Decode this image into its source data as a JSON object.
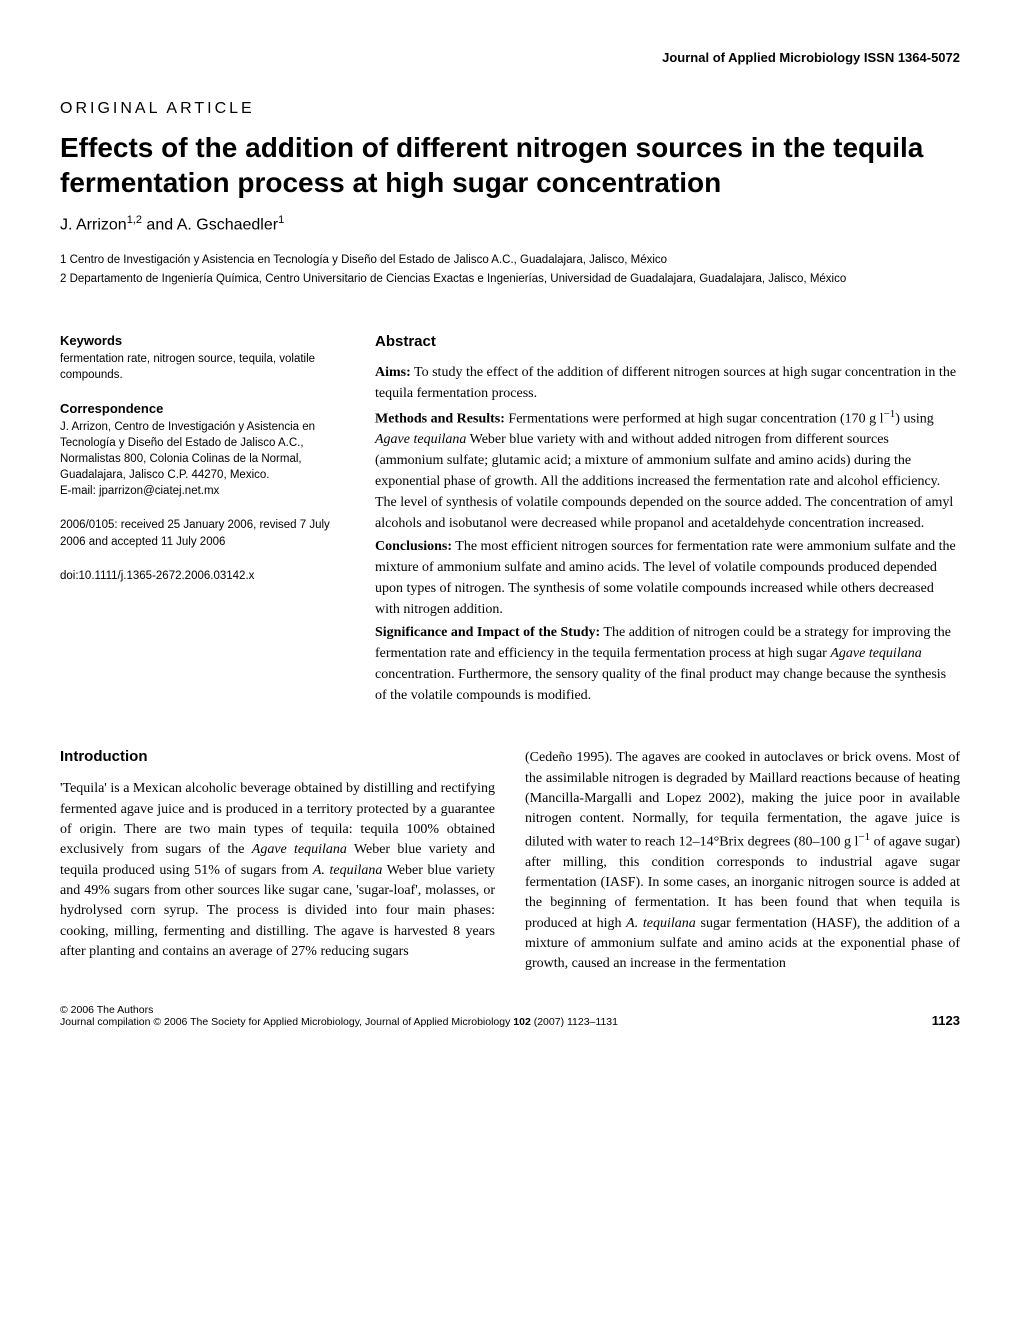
{
  "journal_header": "Journal of Applied Microbiology ISSN 1364-5072",
  "article_type": "ORIGINAL ARTICLE",
  "title": "Effects of the addition of different nitrogen sources in the tequila fermentation process at high sugar concentration",
  "authors": "J. Arrizon",
  "author_sup1": "1,2",
  "authors_and": " and A. Gschaedler",
  "author_sup2": "1",
  "affiliations": {
    "a1": "1 Centro de Investigación y Asistencia en Tecnología y Diseño del Estado de Jalisco A.C., Guadalajara, Jalisco, México",
    "a2": "2 Departamento de Ingeniería Química, Centro Universitario de Ciencias Exactas e Ingenierías, Universidad de Guadalajara, Guadalajara, Jalisco, México"
  },
  "keywords_heading": "Keywords",
  "keywords_text": "fermentation rate, nitrogen source, tequila, volatile compounds.",
  "correspondence_heading": "Correspondence",
  "correspondence_text": "J. Arrizon, Centro de Investigación y Asistencia en Tecnología y Diseño del Estado de Jalisco A.C., Normalistas 800, Colonia Colinas de la Normal, Guadalajara, Jalisco C.P. 44270, Mexico.",
  "correspondence_email": "E-mail: jparrizon@ciatej.net.mx",
  "received_text": "2006/0105: received 25 January 2006, revised 7 July 2006 and accepted 11 July 2006",
  "doi": "doi:10.1111/j.1365-2672.2006.03142.x",
  "abstract_heading": "Abstract",
  "abstract": {
    "aims_label": "Aims:",
    "aims": " To study the effect of the addition of different nitrogen sources at high sugar concentration in the tequila fermentation process.",
    "methods_label": "Methods and Results:",
    "methods1": " Fermentations were performed at high sugar concentration (170 g l",
    "methods_sup": "−1",
    "methods2": ") using ",
    "methods_italic": "Agave tequilana",
    "methods3": " Weber blue variety with and without added nitrogen from different sources (ammonium sulfate; glutamic acid; a mixture of ammonium sulfate and amino acids) during the exponential phase of growth. All the additions increased the fermentation rate and alcohol efficiency. The level of synthesis of volatile compounds depended on the source added. The concentration of amyl alcohols and isobutanol were decreased while propanol and acetaldehyde concentration increased.",
    "conclusions_label": "Conclusions:",
    "conclusions": " The most efficient nitrogen sources for fermentation rate were ammonium sulfate and the mixture of ammonium sulfate and amino acids. The level of volatile compounds produced depended upon types of nitrogen. The synthesis of some volatile compounds increased while others decreased with nitrogen addition.",
    "significance_label": "Significance and Impact of the Study:",
    "significance1": " The addition of nitrogen could be a strategy for improving the fermentation rate and efficiency in the tequila fermentation process at high sugar ",
    "significance_italic": "Agave tequilana",
    "significance2": " concentration. Furthermore, the sensory quality of the final product may change because the synthesis of the volatile compounds is modified."
  },
  "introduction_heading": "Introduction",
  "intro_col1_pre": "'Tequila' is a Mexican alcoholic beverage obtained by distilling and rectifying fermented agave juice and is produced in a territory protected by a guarantee of origin. There are two main types of tequila: tequila 100% obtained exclusively from sugars of the ",
  "intro_italic1": "Agave tequilana",
  "intro_col1_mid1": " Weber blue variety and tequila produced using 51% of sugars from ",
  "intro_italic2": "A. tequilana",
  "intro_col1_mid2": " Weber blue variety and 49% sugars from other sources like sugar cane, 'sugar-loaf', molasses, or hydrolysed corn syrup. The process is divided into four main phases: cooking, milling, fermenting and distilling. The agave is harvested 8 years after planting and contains an average of 27% reducing sugars",
  "intro_col2_pre": "(Cedeño 1995). The agaves are cooked in autoclaves or brick ovens. Most of the assimilable nitrogen is degraded by Maillard reactions because of heating (Mancilla-Margalli and Lopez 2002), making the juice poor in available nitrogen content. Normally, for tequila fermentation, the agave juice is diluted with water to reach 12–14°Brix degrees (80–100 g l",
  "intro_col2_sup": "−1",
  "intro_col2_mid1": " of agave sugar) after milling, this condition corresponds to industrial agave sugar fermentation (IASF). In some cases, an inorganic nitrogen source is added at the beginning of fermentation. It has been found that when tequila is produced at high ",
  "intro_italic3": "A. tequilana",
  "intro_col2_mid2": " sugar fermentation (HASF), the addition of a mixture of ammonium sulfate and amino acids at the exponential phase of growth, caused an increase in the fermentation",
  "footer_copyright": "© 2006 The Authors",
  "footer_journal": "Journal compilation © 2006 The Society for Applied Microbiology, Journal of Applied Microbiology ",
  "footer_vol": "102",
  "footer_pages": " (2007) 1123–1131",
  "page_number": "1123",
  "colors": {
    "text": "#000000",
    "background": "#ffffff"
  }
}
